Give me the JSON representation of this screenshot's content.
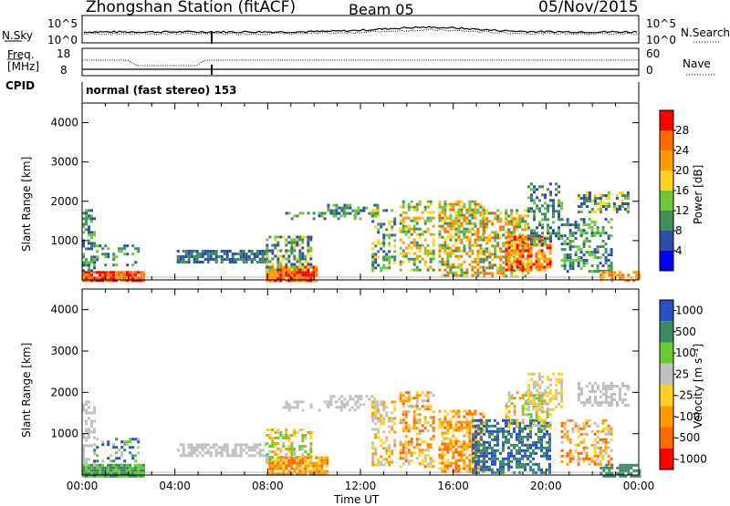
{
  "header": {
    "title": "Zhongshan Station (fitACF)",
    "beam": "Beam 05",
    "date": "05/Nov/2015"
  },
  "summary_panels": {
    "nsky_label": "N.Sky",
    "nsky_ticks": [
      "10^5",
      "10^0"
    ],
    "nsearch_label": "N.Search",
    "nsearch_ticks": [
      "10^5",
      "10^0"
    ],
    "freq_label_1": "Freq.",
    "freq_label_2": "[MHz]",
    "freq_ticks": [
      "18",
      "8"
    ],
    "nave_label": "Nave",
    "nave_ticks": [
      "60",
      "0"
    ],
    "cpid_label": "CPID",
    "cpid_text": "normal (fast stereo) 153"
  },
  "colors": {
    "power_scale": [
      "#0000ff",
      "#2d4fa8",
      "#3f8f5e",
      "#6cc83a",
      "#ffd21f",
      "#ff9a00",
      "#ff6a00",
      "#ff0000"
    ],
    "velocity_scale": [
      "#2850c8",
      "#3a8a64",
      "#66cc33",
      "#c0c0c0",
      "#ffd21f",
      "#ff9a00",
      "#ff6a00",
      "#ff0000"
    ]
  },
  "chart_data": [
    {
      "type": "heatmap",
      "name": "power",
      "ylabel": "Slant Range [km]",
      "ylim": [
        0,
        4500
      ],
      "yticks": [
        "1000",
        "2000",
        "3000",
        "4000"
      ],
      "xticks": [
        "00:00",
        "04:00",
        "08:00",
        "12:00",
        "16:00",
        "20:00",
        "00:00"
      ],
      "colorbar_label": "Power [dB]",
      "colorbar_ticks": [
        "4",
        "8",
        "12",
        "16",
        "20",
        "24",
        "28"
      ]
    },
    {
      "type": "heatmap",
      "name": "velocity",
      "ylabel": "Slant Range [km]",
      "ylim": [
        0,
        4500
      ],
      "yticks": [
        "1000",
        "2000",
        "3000",
        "4000"
      ],
      "xticks": [
        "00:00",
        "04:00",
        "08:00",
        "12:00",
        "16:00",
        "20:00",
        "00:00"
      ],
      "xlabel": "Time UT",
      "colorbar_label": "Velocity [m s⁻¹]",
      "colorbar_ticks": [
        "1000",
        "500",
        "100",
        "25",
        "-25",
        "-100",
        "-500",
        "-1000"
      ]
    }
  ]
}
